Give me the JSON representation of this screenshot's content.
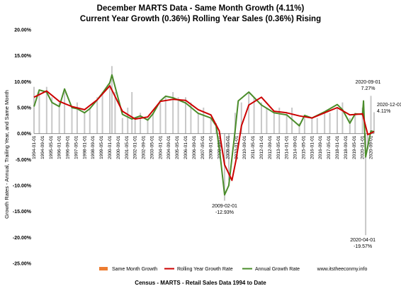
{
  "title_line1": "December  MARTS Data -  Same Month Growth (4.11%)",
  "title_line2": "Current Year Growth (0.36%)  Rolling Year Sales (0.36%) Rising",
  "footer": "Census - MARTS - Retail Sales Data 1994 to Date",
  "site": "www.itstheeconmy.info",
  "colors": {
    "bars": "#c8c8c8",
    "bars_legend": "#ed7d31",
    "rolling": "#cc0000",
    "annual": "#4a8c2a"
  },
  "chart_data": {
    "type": "line",
    "ylabel": "Growth Rates - Annual, Trailing Year, and Same Month",
    "ylim": [
      -25,
      20
    ],
    "yticks": [
      "20.00%",
      "15.00%",
      "10.00%",
      "5.00%",
      "0.00%",
      "-5.00%",
      "-10.00%",
      "-15.00%",
      "-20.00%",
      "-25.00%"
    ],
    "xlim": [
      "1994-01",
      "2020-12"
    ],
    "x_tick_labels": [
      "1994-01-01",
      "1994-09-01",
      "1995-05-01",
      "1996-01-01",
      "1996-09-01",
      "1997-05-01",
      "1998-01-01",
      "1998-09-01",
      "1999-05-01",
      "2000-01-01",
      "2000-09-01",
      "2001-05-01",
      "2002-01-01",
      "2002-09-01",
      "2003-05-01",
      "2004-01-01",
      "2004-09-01",
      "2005-05-01",
      "2006-01-01",
      "2006-09-01",
      "2007-05-01",
      "2008-01-01",
      "2008-09-01",
      "2009-05-01",
      "2010-01-01",
      "2010-09-01",
      "2011-05-01",
      "2012-01-01",
      "2012-09-01",
      "2013-05-01",
      "2014-01-01",
      "2014-09-01",
      "2015-05-01",
      "2016-01-01",
      "2016-09-01",
      "2017-05-01",
      "2018-01-01",
      "2018-09-01",
      "2019-05-01",
      "2020-01-01",
      "2020-09-01"
    ],
    "series": [
      {
        "name": "Same Month Growth",
        "style": "bar",
        "x": [
          "1994-01",
          "1994-06",
          "1995-01",
          "1995-06",
          "1996-01",
          "1996-06",
          "1997-01",
          "1997-06",
          "1998-01",
          "1998-06",
          "1999-01",
          "1999-06",
          "2000-01",
          "2000-03",
          "2000-06",
          "2001-01",
          "2001-06",
          "2001-10",
          "2002-01",
          "2002-06",
          "2003-01",
          "2003-06",
          "2004-01",
          "2004-06",
          "2005-01",
          "2005-06",
          "2006-01",
          "2006-06",
          "2007-01",
          "2007-06",
          "2008-01",
          "2008-06",
          "2008-10",
          "2009-02",
          "2009-06",
          "2009-12",
          "2010-06",
          "2011-01",
          "2011-06",
          "2012-01",
          "2012-06",
          "2013-01",
          "2013-06",
          "2014-01",
          "2014-06",
          "2015-01",
          "2015-06",
          "2016-01",
          "2016-06",
          "2017-01",
          "2017-06",
          "2018-01",
          "2018-06",
          "2019-01",
          "2019-06",
          "2020-01",
          "2020-04",
          "2020-06",
          "2020-09",
          "2020-12"
        ],
        "values": [
          9,
          8,
          9,
          7,
          6,
          8,
          5,
          6,
          4,
          5,
          7,
          8,
          10,
          13,
          8,
          3,
          5,
          8,
          3,
          4,
          3,
          4,
          6,
          7,
          8,
          7,
          7,
          6,
          4,
          5,
          3,
          2,
          -5,
          -12.93,
          -9,
          4,
          6,
          8,
          7,
          6,
          5,
          4,
          5,
          4,
          5,
          2,
          3,
          3,
          3,
          4,
          4,
          5,
          6,
          3,
          4,
          5,
          -19.57,
          -3,
          7.27,
          4.11
        ]
      },
      {
        "name": "Rolling Year Growth Rate",
        "style": "line",
        "x": [
          "1994-01",
          "1995-01",
          "1996-01",
          "1997-01",
          "1998-01",
          "1999-01",
          "2000-01",
          "2001-01",
          "2002-01",
          "2003-01",
          "2004-01",
          "2005-01",
          "2006-01",
          "2007-01",
          "2008-01",
          "2008-09",
          "2009-02",
          "2009-09",
          "2010-01",
          "2010-06",
          "2011-01",
          "2012-01",
          "2013-01",
          "2014-01",
          "2015-01",
          "2016-01",
          "2017-01",
          "2018-01",
          "2019-01",
          "2020-01",
          "2020-06",
          "2020-12"
        ],
        "values": [
          7,
          8.2,
          6.2,
          5.2,
          4.6,
          6.5,
          9.2,
          4.3,
          2.8,
          3.2,
          6.2,
          6.6,
          6.4,
          4.6,
          3.6,
          0.5,
          -6,
          -9,
          -5,
          1.5,
          5.5,
          7,
          4.3,
          4,
          3.4,
          3,
          4,
          5,
          3.6,
          3.8,
          -0.2,
          0.36
        ]
      },
      {
        "name": "Annual Growth Rate",
        "style": "line",
        "x": [
          "1994-01",
          "1994-06",
          "1995-01",
          "1995-06",
          "1996-01",
          "1996-06",
          "1997-01",
          "1997-06",
          "1998-01",
          "1998-06",
          "1999-01",
          "1999-06",
          "2000-01",
          "2000-03",
          "2001-01",
          "2001-10",
          "2002-06",
          "2003-01",
          "2003-06",
          "2004-01",
          "2004-06",
          "2005-01",
          "2006-01",
          "2007-01",
          "2008-01",
          "2008-06",
          "2008-10",
          "2009-02",
          "2009-06",
          "2009-12",
          "2010-03",
          "2011-01",
          "2012-01",
          "2013-01",
          "2014-01",
          "2015-01",
          "2015-06",
          "2016-01",
          "2017-01",
          "2018-01",
          "2018-06",
          "2019-01",
          "2019-06",
          "2020-01",
          "2020-02",
          "2020-04",
          "2020-09",
          "2020-12"
        ],
        "values": [
          5.2,
          8.4,
          8,
          6,
          5.2,
          8.6,
          5,
          4.8,
          4,
          4.8,
          6.5,
          7.8,
          9.8,
          11.3,
          3.7,
          2.8,
          3.4,
          2.6,
          3.8,
          6.3,
          7.2,
          6.9,
          5.9,
          3.9,
          3,
          1.5,
          -4.5,
          -11.8,
          -10,
          0.5,
          6.3,
          8,
          5.5,
          4,
          3.6,
          1.5,
          3.5,
          3,
          4.2,
          5.6,
          4.6,
          2,
          3.8,
          3.7,
          6.3,
          -4.5,
          0.5,
          0.36
        ]
      }
    ],
    "annotations": [
      {
        "date": "2009-02-01",
        "value": "-12.93%"
      },
      {
        "date": "2020-04-01",
        "value": "-19.57%"
      },
      {
        "date": "2020-09-01",
        "value": "7.27%"
      },
      {
        "date": "2020-12-01",
        "value": "4.11%"
      }
    ],
    "legend": [
      "Same Month Growth",
      "Rolling Year Growth Rate",
      "Annual Growth Rate"
    ],
    "grid": false
  }
}
